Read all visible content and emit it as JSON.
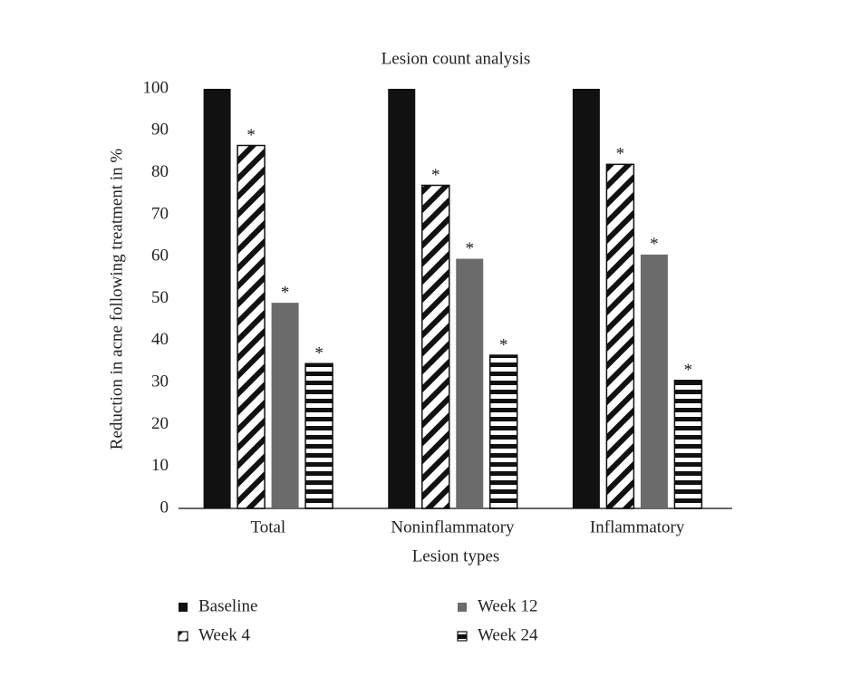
{
  "chart_data": {
    "type": "bar",
    "title": "Lesion count analysis",
    "x_label": "Lesion types",
    "y_label": "Reduction in acne following treatment in %",
    "categories": [
      "Total",
      "Noninflammatory",
      "Inflammatory"
    ],
    "series": [
      {
        "name": "Baseline",
        "color": "#111111",
        "pattern": "solid",
        "values": [
          100,
          100,
          100
        ]
      },
      {
        "name": "Week 4",
        "color": "#111111",
        "pattern": "diagonal",
        "values": [
          86.5,
          77,
          82
        ],
        "annotations": [
          "*",
          "*",
          "*"
        ]
      },
      {
        "name": "Week 12",
        "color": "#6b6b6b",
        "pattern": "solid",
        "values": [
          49,
          59.5,
          60.5
        ],
        "annotations": [
          "*",
          "*",
          "*"
        ]
      },
      {
        "name": "Week 24",
        "color": "#111111",
        "pattern": "horizontal",
        "values": [
          34.5,
          36.5,
          30.5
        ],
        "annotations": [
          "*",
          "*",
          "*"
        ]
      }
    ],
    "ylim": [
      0,
      100
    ],
    "yticks": [
      0,
      10,
      20,
      30,
      40,
      50,
      60,
      70,
      80,
      90,
      100
    ],
    "grid": false,
    "legend": "bottom"
  }
}
